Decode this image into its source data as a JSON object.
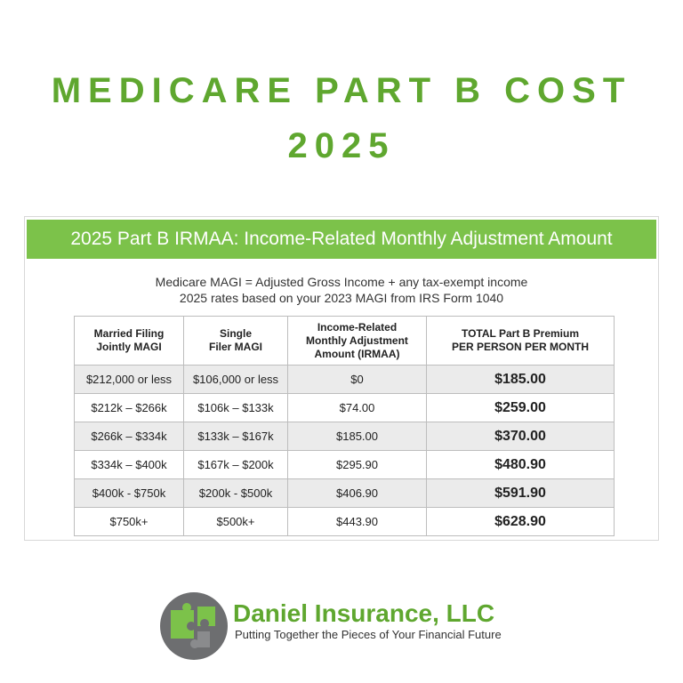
{
  "header": {
    "title": "MEDICARE PART B COST",
    "year": "2025"
  },
  "panel": {
    "banner": "2025 Part B IRMAA: Income-Related Monthly Adjustment Amount",
    "notes": [
      "Medicare MAGI = Adjusted Gross Income + any tax-exempt income",
      "2025 rates based on your 2023 MAGI from IRS Form 1040"
    ],
    "table": {
      "columns": [
        [
          "Married Filing",
          "Jointly MAGI"
        ],
        [
          "Single",
          "Filer MAGI"
        ],
        [
          "Income-Related",
          "Monthly Adjustment",
          "Amount (IRMAA)"
        ],
        [
          "TOTAL Part B Premium",
          "PER PERSON PER MONTH"
        ]
      ],
      "rows": [
        [
          "$212,000 or less",
          "$106,000 or less",
          "$0",
          "$185.00"
        ],
        [
          "$212k – $266k",
          "$106k – $133k",
          "$74.00",
          "$259.00"
        ],
        [
          "$266k – $334k",
          "$133k – $167k",
          "$185.00",
          "$370.00"
        ],
        [
          "$334k – $400k",
          "$167k – $200k",
          "$295.90",
          "$480.90"
        ],
        [
          "$400k - $750k",
          "$200k - $500k",
          "$406.90",
          "$591.90"
        ],
        [
          "$750k+",
          "$500k+",
          "$443.90",
          "$628.90"
        ]
      ]
    }
  },
  "footer": {
    "company": "Daniel Insurance, LLC",
    "tagline": "Putting Together the Pieces of Your Financial Future"
  }
}
